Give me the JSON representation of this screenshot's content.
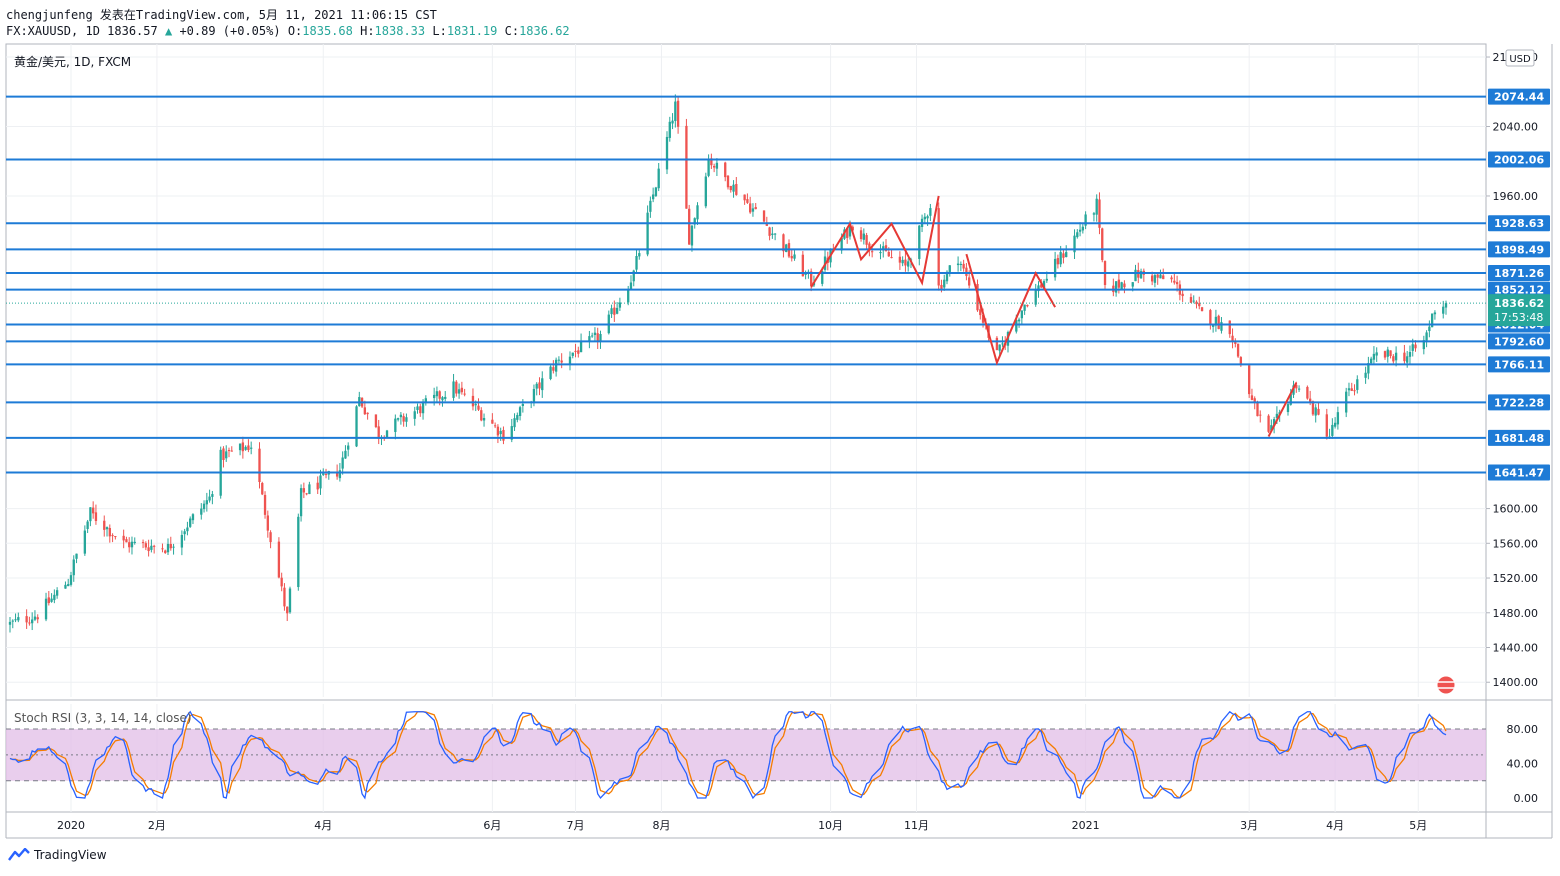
{
  "header": {
    "author_line": "chengjunfeng 发表在TradingView.com, 5月 11, 2021 11:06:15 CST",
    "symbol": "FX:XAUUSD, 1D",
    "last": "1836.57",
    "change": "+0.89 (+0.05%)",
    "o_label": "O:",
    "o": "1835.68",
    "h_label": "H:",
    "h": "1838.33",
    "l_label": "L:",
    "l": "1831.19",
    "c_label": "C:",
    "c": "1836.62"
  },
  "legend": "黄金/美元, 1D, FXCM",
  "currency": "USD",
  "price_badge": {
    "price": "1836.62",
    "countdown": "17:53:48"
  },
  "indicator": {
    "label": "Stoch RSI (3, 3, 14, 14, close)",
    "ticks": [
      "80.00",
      "40.00",
      "0.00"
    ],
    "upper_band": 80,
    "lower_band": 20,
    "k_color": "#2962ff",
    "d_color": "#f57c00",
    "band_fill": "#e1bee7"
  },
  "footer": {
    "brand": "TradingView"
  },
  "colors": {
    "up": "#26a69a",
    "down": "#ef5350",
    "level_line": "#1e7bd6",
    "level_badge": "#1e7bd6",
    "pattern_line": "#e53935",
    "grid": "#eef0f3"
  },
  "chart_data": {
    "type": "candlestick",
    "symbol": "FX:XAUUSD",
    "interval": "1D",
    "y_ticks": [
      2120,
      2040,
      1960,
      1600,
      1560,
      1520,
      1480,
      1440,
      1400
    ],
    "y_tick_labels": [
      "2120.00",
      "2040.00",
      "1960.00",
      "1600.00",
      "1560.00",
      "1520.00",
      "1480.00",
      "1440.00",
      "1400.00"
    ],
    "ylim": [
      1383,
      2135
    ],
    "x_tick_labels": [
      "2020",
      "2月",
      "4月",
      "6月",
      "7月",
      "8月",
      "10月",
      "11月",
      "2021",
      "3月",
      "4月",
      "5月"
    ],
    "horizontal_levels": [
      2074.44,
      2002.06,
      1928.63,
      1898.49,
      1871.26,
      1852.12,
      1812.04,
      1792.6,
      1766.11,
      1722.28,
      1681.48,
      1641.47
    ],
    "level_labels": [
      "2074.44",
      "2002.06",
      "1928.63",
      "1898.49",
      "1871.26",
      "1852.12",
      "1812.04",
      "1792.60",
      "1766.11",
      "1722.28",
      "1681.48",
      "1641.47"
    ],
    "last_price": 1836.62,
    "price_path": [
      [
        "2019-12-10",
        1467
      ],
      [
        "2019-12-20",
        1478
      ],
      [
        "2019-12-31",
        1517
      ],
      [
        "2020-01-08",
        1595
      ],
      [
        "2020-01-20",
        1560
      ],
      [
        "2020-02-05",
        1555
      ],
      [
        "2020-02-20",
        1612
      ],
      [
        "2020-02-24",
        1660
      ],
      [
        "2020-03-06",
        1673
      ],
      [
        "2020-03-19",
        1475
      ],
      [
        "2020-03-24",
        1616
      ],
      [
        "2020-04-07",
        1645
      ],
      [
        "2020-04-14",
        1727
      ],
      [
        "2020-04-21",
        1685
      ],
      [
        "2020-05-18",
        1740
      ],
      [
        "2020-06-05",
        1685
      ],
      [
        "2020-06-24",
        1768
      ],
      [
        "2020-07-10",
        1799
      ],
      [
        "2020-07-22",
        1871
      ],
      [
        "2020-08-06",
        2064
      ],
      [
        "2020-08-11",
        1912
      ],
      [
        "2020-08-18",
        2003
      ],
      [
        "2020-09-07",
        1930
      ],
      [
        "2020-09-24",
        1861
      ],
      [
        "2020-10-09",
        1928
      ],
      [
        "2020-10-15",
        1905
      ],
      [
        "2020-10-28",
        1878
      ],
      [
        "2020-11-06",
        1951
      ],
      [
        "2020-11-09",
        1855
      ],
      [
        "2020-11-16",
        1890
      ],
      [
        "2020-11-30",
        1776
      ],
      [
        "2020-12-10",
        1836
      ],
      [
        "2020-12-16",
        1858
      ],
      [
        "2020-12-21",
        1880
      ],
      [
        "2021-01-05",
        1950
      ],
      [
        "2021-01-08",
        1850
      ],
      [
        "2021-01-20",
        1870
      ],
      [
        "2021-02-01",
        1862
      ],
      [
        "2021-02-12",
        1823
      ],
      [
        "2021-02-22",
        1808
      ],
      [
        "2021-03-02",
        1723
      ],
      [
        "2021-03-08",
        1683
      ],
      [
        "2021-03-18",
        1745
      ],
      [
        "2021-03-30",
        1684
      ],
      [
        "2021-04-05",
        1729
      ],
      [
        "2021-04-16",
        1776
      ],
      [
        "2021-04-27",
        1776
      ],
      [
        "2021-05-03",
        1792
      ],
      [
        "2021-05-07",
        1831
      ],
      [
        "2021-05-11",
        1836.6
      ]
    ]
  }
}
